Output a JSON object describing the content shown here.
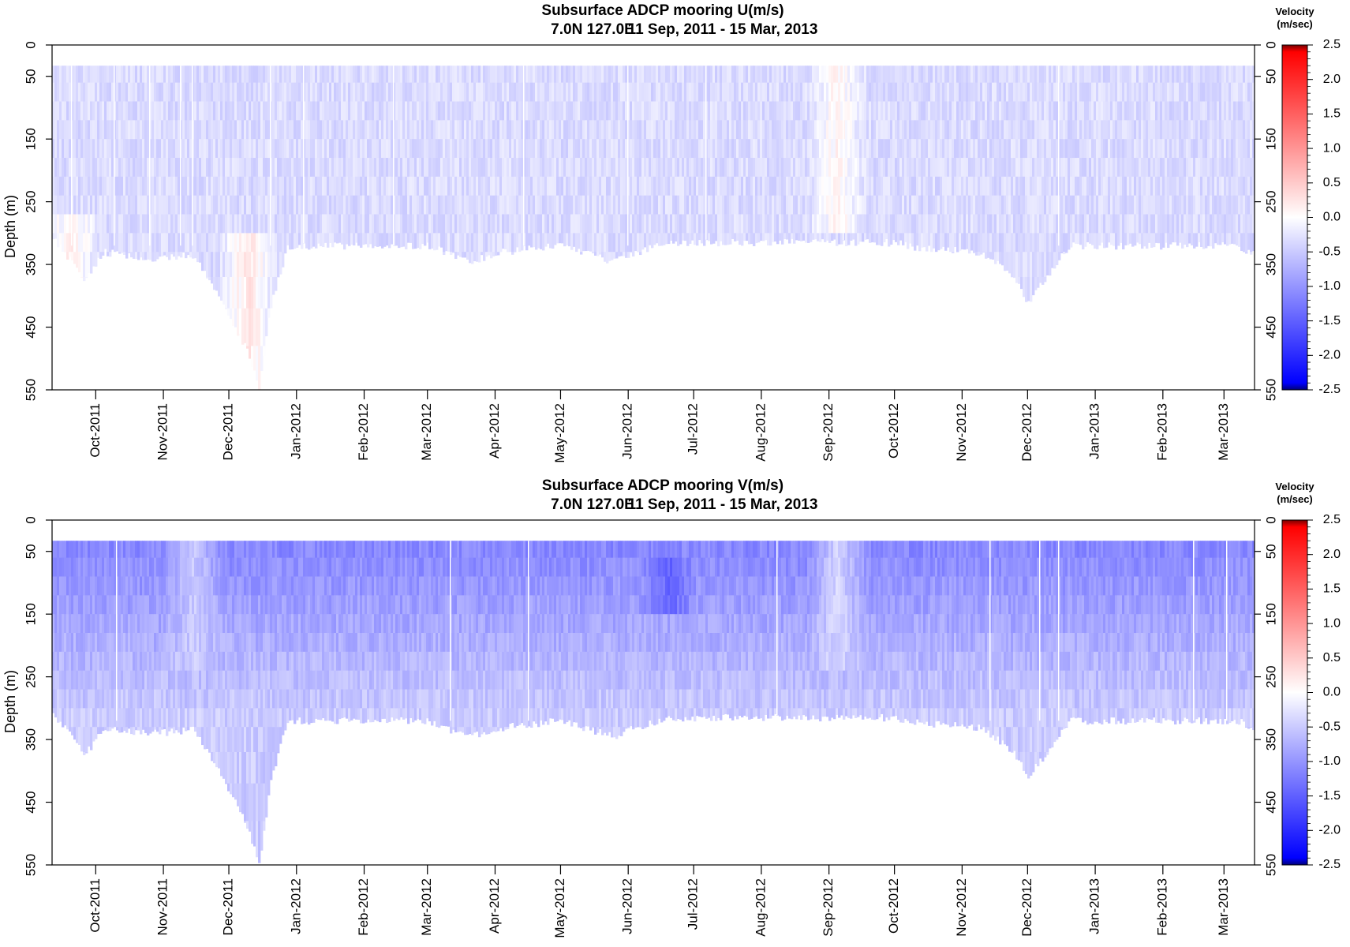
{
  "chart_data": [
    {
      "type": "heatmap",
      "title": "Subsurface ADCP mooring U(m/s)",
      "subtitle_location": "7.0N 127.0E",
      "subtitle_dates": "11 Sep, 2011 - 15 Mar, 2013",
      "ylabel": "Depth (m)",
      "xlim": [
        "2011-09-11",
        "2013-03-15"
      ],
      "ylim": [
        550,
        0
      ],
      "y_ticks_left": [
        0,
        50,
        150,
        250,
        350,
        450,
        550
      ],
      "y_ticks_right": [
        0,
        50,
        150,
        250,
        350,
        450,
        550
      ],
      "x_ticks": [
        {
          "label": "Oct-2011",
          "date": "2011-10-01"
        },
        {
          "label": "Nov-2011",
          "date": "2011-11-01"
        },
        {
          "label": "Dec-2011",
          "date": "2011-12-01"
        },
        {
          "label": "Jan-2012",
          "date": "2012-01-01"
        },
        {
          "label": "Feb-2012",
          "date": "2012-02-01"
        },
        {
          "label": "Mar-2012",
          "date": "2012-03-01"
        },
        {
          "label": "Apr-2012",
          "date": "2012-04-01"
        },
        {
          "label": "May-2012",
          "date": "2012-05-01"
        },
        {
          "label": "Jun-2012",
          "date": "2012-06-01"
        },
        {
          "label": "Jul-2012",
          "date": "2012-07-01"
        },
        {
          "label": "Aug-2012",
          "date": "2012-08-01"
        },
        {
          "label": "Sep-2012",
          "date": "2012-09-01"
        },
        {
          "label": "Oct-2012",
          "date": "2012-10-01"
        },
        {
          "label": "Nov-2012",
          "date": "2012-11-01"
        },
        {
          "label": "Dec-2012",
          "date": "2012-12-01"
        },
        {
          "label": "Jan-2013",
          "date": "2013-01-01"
        },
        {
          "label": "Feb-2013",
          "date": "2013-02-01"
        },
        {
          "label": "Mar-2013",
          "date": "2013-03-01"
        }
      ],
      "colorbar": {
        "title_line1": "Velocity",
        "title_line2": "(m/sec)",
        "ticks": [
          "2.5",
          "2.0",
          "1.5",
          "1.0",
          "0.5",
          "0.0",
          "-0.5",
          "-1.0",
          "-1.5",
          "-2.0",
          "-2.5"
        ],
        "range": [
          -2.5,
          2.5
        ],
        "colors": {
          "max": "#7a0000",
          "high": "#ff0000",
          "zero": "#ffffff",
          "low": "#0000ff",
          "min": "#00007a"
        }
      },
      "data_top_depth": 33,
      "bottom_depth_profile": [
        {
          "date": "2011-09-11",
          "depth": 305
        },
        {
          "date": "2011-09-20",
          "depth": 345
        },
        {
          "date": "2011-09-26",
          "depth": 375
        },
        {
          "date": "2011-10-05",
          "depth": 330
        },
        {
          "date": "2011-10-25",
          "depth": 340
        },
        {
          "date": "2011-11-15",
          "depth": 335
        },
        {
          "date": "2011-11-25",
          "depth": 390
        },
        {
          "date": "2011-12-01",
          "depth": 430
        },
        {
          "date": "2011-12-10",
          "depth": 490
        },
        {
          "date": "2011-12-15",
          "depth": 550
        },
        {
          "date": "2011-12-20",
          "depth": 420
        },
        {
          "date": "2011-12-28",
          "depth": 320
        },
        {
          "date": "2012-03-01",
          "depth": 320
        },
        {
          "date": "2012-03-20",
          "depth": 345
        },
        {
          "date": "2012-04-05",
          "depth": 330
        },
        {
          "date": "2012-05-01",
          "depth": 320
        },
        {
          "date": "2012-05-25",
          "depth": 345
        },
        {
          "date": "2012-06-05",
          "depth": 330
        },
        {
          "date": "2012-06-20",
          "depth": 315
        },
        {
          "date": "2012-10-01",
          "depth": 315
        },
        {
          "date": "2012-10-15",
          "depth": 325
        },
        {
          "date": "2012-11-10",
          "depth": 330
        },
        {
          "date": "2012-11-25",
          "depth": 370
        },
        {
          "date": "2012-12-01",
          "depth": 410
        },
        {
          "date": "2012-12-08",
          "depth": 380
        },
        {
          "date": "2012-12-20",
          "depth": 320
        },
        {
          "date": "2013-03-08",
          "depth": 320
        },
        {
          "date": "2013-03-15",
          "depth": 335
        }
      ],
      "velocity_fields": {
        "base": -0.35,
        "features": [
          {
            "date": "2011-12-10",
            "depth_range": [
              300,
              550
            ],
            "value": 0.25
          },
          {
            "date": "2011-09-20",
            "depth_range": [
              280,
              380
            ],
            "value": 0.15
          },
          {
            "date": "2012-09-05",
            "depth_range": [
              33,
              300
            ],
            "value": 0.1
          }
        ]
      }
    },
    {
      "type": "heatmap",
      "title": "Subsurface ADCP mooring V(m/s)",
      "subtitle_location": "7.0N 127.0E",
      "subtitle_dates": "11 Sep, 2011 - 15 Mar, 2013",
      "ylabel": "Depth (m)",
      "xlim": [
        "2011-09-11",
        "2013-03-15"
      ],
      "ylim": [
        550,
        0
      ],
      "y_ticks_left": [
        0,
        50,
        150,
        250,
        350,
        450,
        550
      ],
      "y_ticks_right": [
        0,
        50,
        150,
        250,
        350,
        450,
        550
      ],
      "x_ticks": [
        {
          "label": "Oct-2011",
          "date": "2011-10-01"
        },
        {
          "label": "Nov-2011",
          "date": "2011-11-01"
        },
        {
          "label": "Dec-2011",
          "date": "2011-12-01"
        },
        {
          "label": "Jan-2012",
          "date": "2012-01-01"
        },
        {
          "label": "Feb-2012",
          "date": "2012-02-01"
        },
        {
          "label": "Mar-2012",
          "date": "2012-03-01"
        },
        {
          "label": "Apr-2012",
          "date": "2012-04-01"
        },
        {
          "label": "May-2012",
          "date": "2012-05-01"
        },
        {
          "label": "Jun-2012",
          "date": "2012-06-01"
        },
        {
          "label": "Jul-2012",
          "date": "2012-07-01"
        },
        {
          "label": "Aug-2012",
          "date": "2012-08-01"
        },
        {
          "label": "Sep-2012",
          "date": "2012-09-01"
        },
        {
          "label": "Oct-2012",
          "date": "2012-10-01"
        },
        {
          "label": "Nov-2012",
          "date": "2012-11-01"
        },
        {
          "label": "Dec-2012",
          "date": "2012-12-01"
        },
        {
          "label": "Jan-2013",
          "date": "2013-01-01"
        },
        {
          "label": "Feb-2013",
          "date": "2013-02-01"
        },
        {
          "label": "Mar-2013",
          "date": "2013-03-01"
        }
      ],
      "colorbar": {
        "title_line1": "Velocity",
        "title_line2": "(m/sec)",
        "ticks": [
          "2.5",
          "2.0",
          "1.5",
          "1.0",
          "0.5",
          "0.0",
          "-0.5",
          "-1.0",
          "-1.5",
          "-2.0",
          "-2.5"
        ],
        "range": [
          -2.5,
          2.5
        ],
        "colors": {
          "max": "#7a0000",
          "high": "#ff0000",
          "zero": "#ffffff",
          "low": "#0000ff",
          "min": "#00007a"
        }
      },
      "data_top_depth": 33,
      "bottom_depth_profile": [
        {
          "date": "2011-09-11",
          "depth": 305
        },
        {
          "date": "2011-09-20",
          "depth": 345
        },
        {
          "date": "2011-09-26",
          "depth": 375
        },
        {
          "date": "2011-10-05",
          "depth": 330
        },
        {
          "date": "2011-10-25",
          "depth": 340
        },
        {
          "date": "2011-11-15",
          "depth": 335
        },
        {
          "date": "2011-11-25",
          "depth": 390
        },
        {
          "date": "2011-12-01",
          "depth": 430
        },
        {
          "date": "2011-12-10",
          "depth": 490
        },
        {
          "date": "2011-12-15",
          "depth": 550
        },
        {
          "date": "2011-12-20",
          "depth": 420
        },
        {
          "date": "2011-12-28",
          "depth": 320
        },
        {
          "date": "2012-03-01",
          "depth": 320
        },
        {
          "date": "2012-03-20",
          "depth": 345
        },
        {
          "date": "2012-04-05",
          "depth": 330
        },
        {
          "date": "2012-05-01",
          "depth": 320
        },
        {
          "date": "2012-05-25",
          "depth": 345
        },
        {
          "date": "2012-06-05",
          "depth": 330
        },
        {
          "date": "2012-06-20",
          "depth": 315
        },
        {
          "date": "2012-10-01",
          "depth": 315
        },
        {
          "date": "2012-10-15",
          "depth": 325
        },
        {
          "date": "2012-11-10",
          "depth": 330
        },
        {
          "date": "2012-11-25",
          "depth": 370
        },
        {
          "date": "2012-12-01",
          "depth": 410
        },
        {
          "date": "2012-12-08",
          "depth": 380
        },
        {
          "date": "2012-12-20",
          "depth": 320
        },
        {
          "date": "2013-03-08",
          "depth": 320
        },
        {
          "date": "2013-03-15",
          "depth": 335
        }
      ],
      "velocity_fields": {
        "base": -0.9,
        "surface": -1.2,
        "deep": -0.5,
        "features": [
          {
            "date": "2012-06-20",
            "depth_range": [
              50,
              150
            ],
            "value": -1.5
          },
          {
            "date": "2011-11-15",
            "depth_range": [
              33,
              250
            ],
            "value": -0.5
          },
          {
            "date": "2012-09-05",
            "depth_range": [
              33,
              250
            ],
            "value": -0.4
          }
        ]
      }
    }
  ]
}
